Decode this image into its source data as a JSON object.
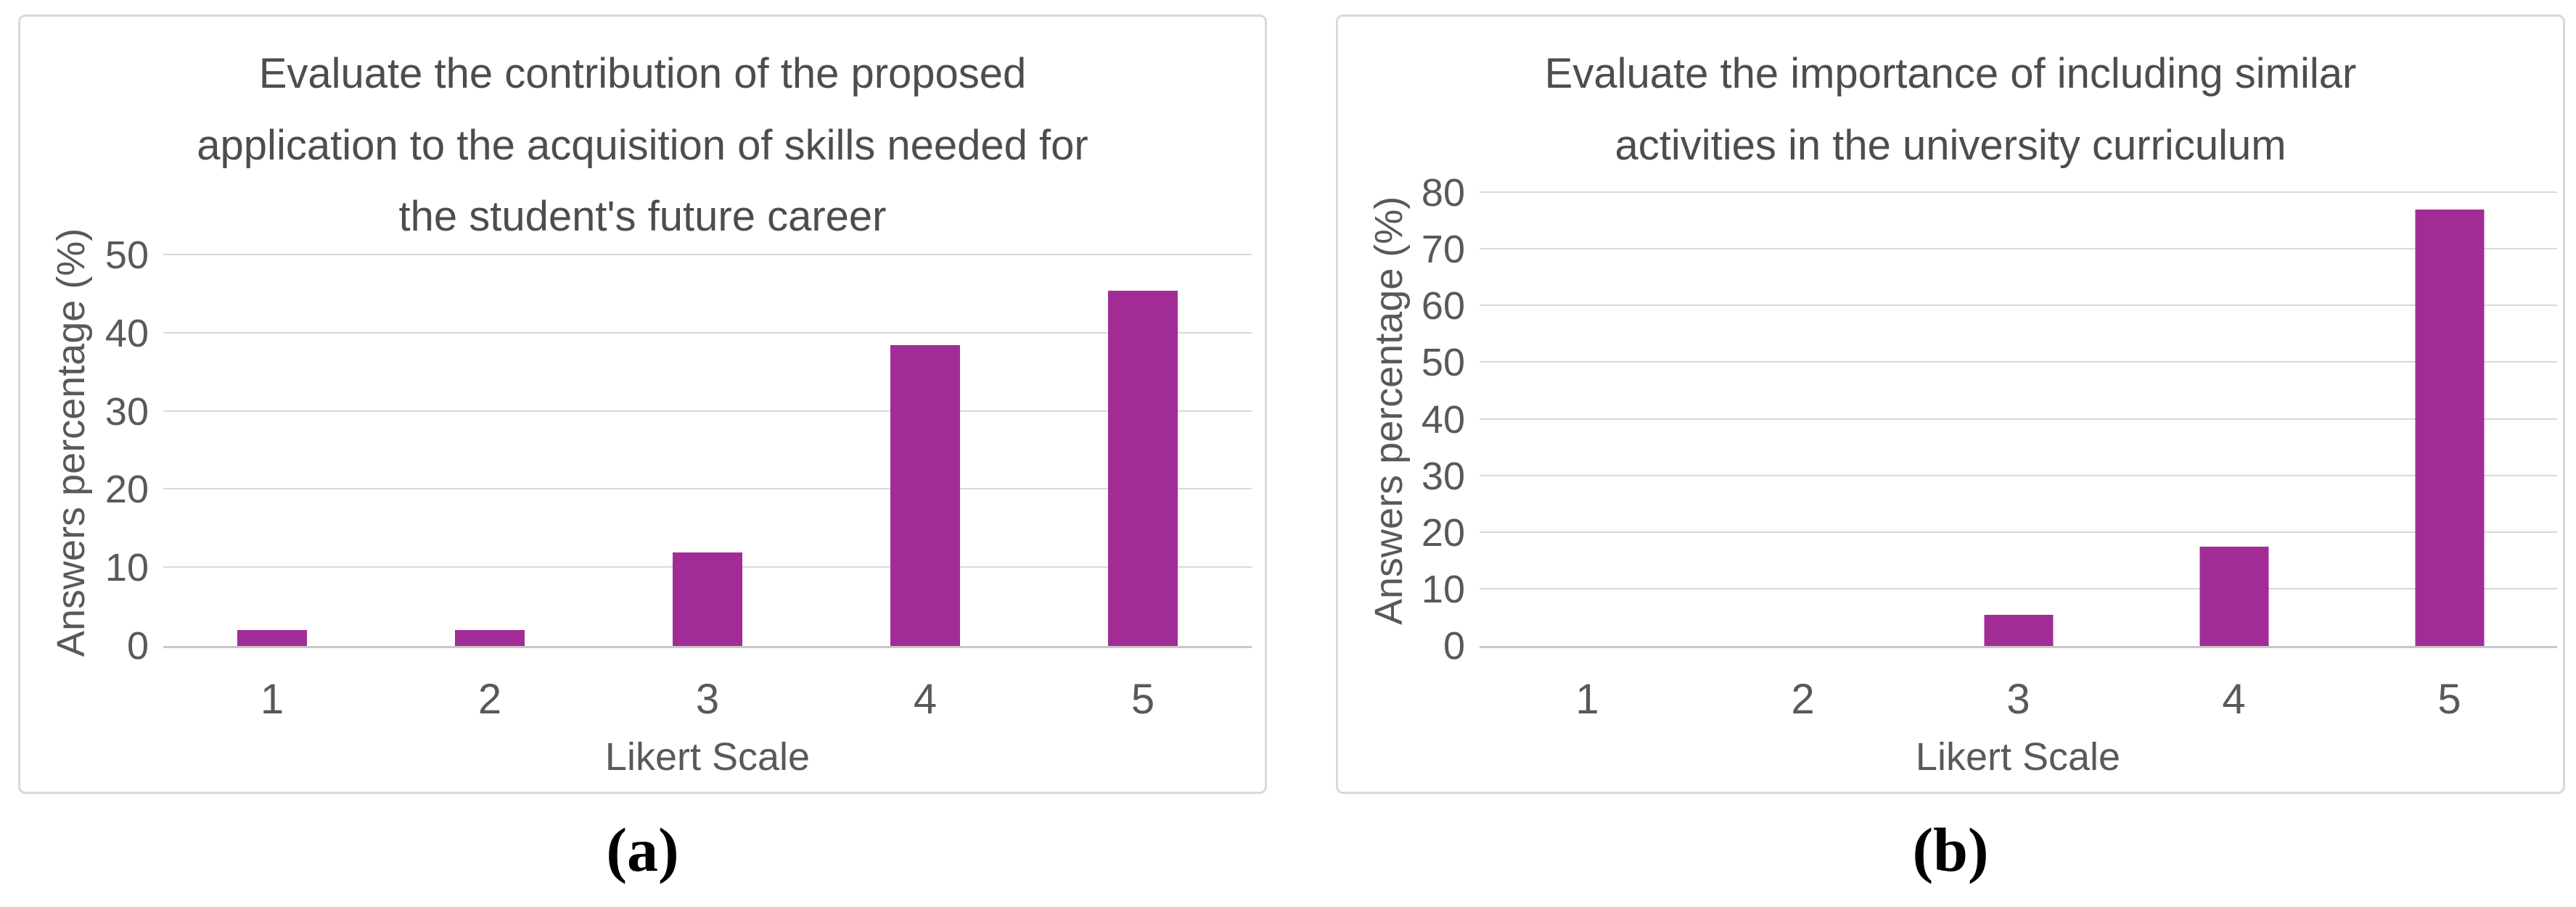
{
  "figure": {
    "captions": {
      "a": "(a)",
      "b": "(b)"
    }
  },
  "chart_data": [
    {
      "type": "bar",
      "title": "Evaluate the contribution of the proposed\napplication to the acquisition of skills needed for\nthe student's future career",
      "categories": [
        "1",
        "2",
        "3",
        "4",
        "5"
      ],
      "values": [
        2,
        2,
        12,
        38.5,
        45.5
      ],
      "xlabel": "Likert Scale",
      "ylabel": "Answers percentage (%)",
      "ylim": [
        0,
        50
      ],
      "ytick_step": 10,
      "yticks": [
        0,
        10,
        20,
        30,
        40,
        50
      ],
      "bar_color": "#A22C96",
      "gridline_color": "#D9D9D9",
      "grid": true,
      "legend": false
    },
    {
      "type": "bar",
      "title": "Evaluate the importance of including similar\nactivities in the university curriculum",
      "categories": [
        "1",
        "2",
        "3",
        "4",
        "5"
      ],
      "values": [
        0,
        0,
        5.5,
        17.5,
        77
      ],
      "xlabel": "Likert Scale",
      "ylabel": "Answers percentage (%)",
      "ylim": [
        0,
        80
      ],
      "ytick_step": 10,
      "yticks": [
        0,
        10,
        20,
        30,
        40,
        50,
        60,
        70,
        80
      ],
      "bar_color": "#A22C96",
      "gridline_color": "#D9D9D9",
      "grid": true,
      "legend": false
    }
  ]
}
